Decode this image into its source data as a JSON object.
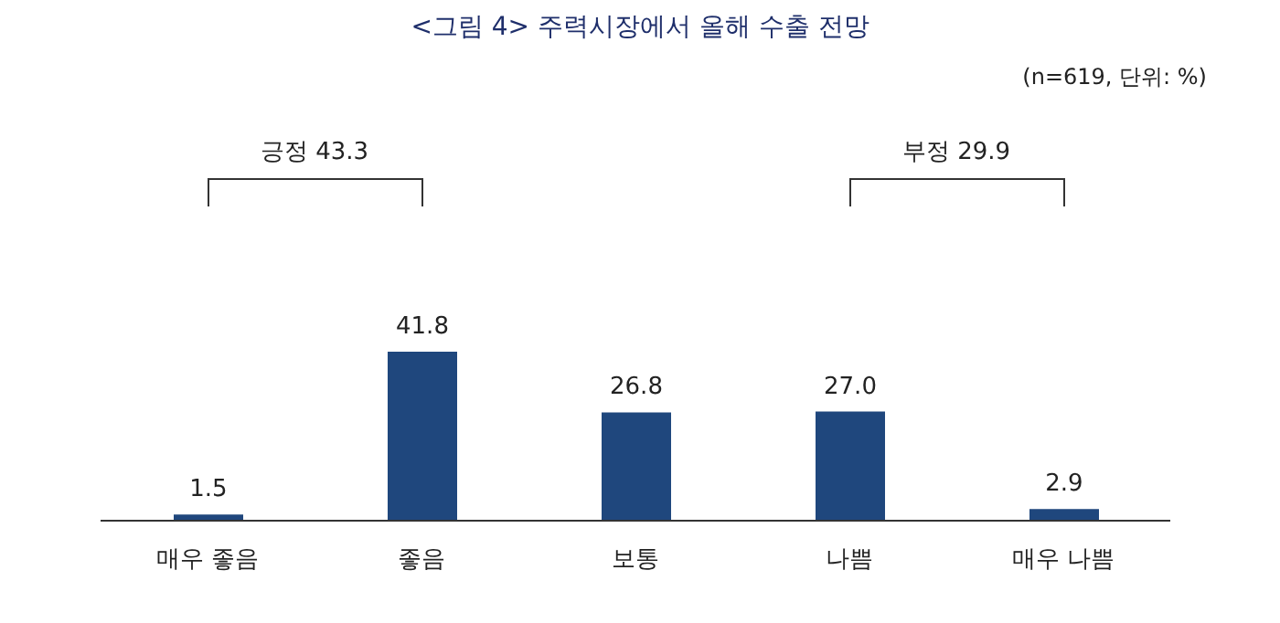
{
  "chart_data": {
    "type": "bar",
    "title": "<그림 4> 주력시장에서 올해 수출 전망",
    "annotations": [
      "(n=619, 단위: %)",
      "긍정 43.3",
      "부정 29.9"
    ],
    "categories": [
      "매우 좋음",
      "좋음",
      "보통",
      "나쁨",
      "매우 나쁨"
    ],
    "values": [
      1.5,
      41.8,
      26.8,
      27.0,
      2.9
    ],
    "value_labels": [
      "1.5",
      "41.8",
      "26.8",
      "27.0",
      "2.9"
    ],
    "color": "#1f477d",
    "grid": false,
    "legend": false
  }
}
